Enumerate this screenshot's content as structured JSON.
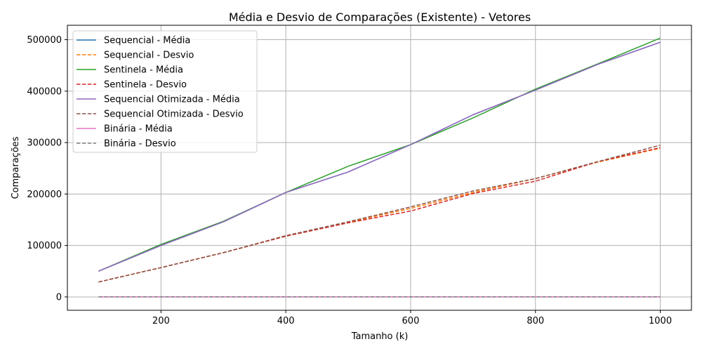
{
  "chart_data": {
    "type": "line",
    "title": "Média e Desvio de Comparações (Existente) - Vetores",
    "xlabel": "Tamanho (k)",
    "ylabel": "Comparações",
    "xlim": [
      50,
      1050
    ],
    "ylim": [
      -26000,
      528000
    ],
    "xticks": [
      200,
      400,
      600,
      800,
      1000
    ],
    "yticks": [
      0,
      100000,
      200000,
      300000,
      400000,
      500000
    ],
    "grid": true,
    "legend_position": "top-left",
    "x": [
      100,
      200,
      300,
      400,
      500,
      600,
      700,
      800,
      900,
      1000
    ],
    "series": [
      {
        "name": "Sequencial - Média",
        "color": "#1f77b4",
        "dash": "solid",
        "values": [
          50000,
          100000,
          146000,
          203000,
          243000,
          296000,
          354000,
          402000,
          452000,
          495000
        ]
      },
      {
        "name": "Sequencial - Desvio",
        "color": "#ff7f0e",
        "dash": "dashed",
        "values": [
          29000,
          57000,
          86000,
          118000,
          145000,
          172000,
          203000,
          230000,
          262000,
          289000
        ]
      },
      {
        "name": "Sentinela - Média",
        "color": "#2ca02c",
        "dash": "solid",
        "values": [
          50000,
          102000,
          147000,
          203000,
          254000,
          296000,
          348000,
          404000,
          453000,
          503000
        ]
      },
      {
        "name": "Sentinela - Desvio",
        "color": "#d62728",
        "dash": "dashed",
        "values": [
          29000,
          57000,
          86000,
          118000,
          144000,
          167000,
          201000,
          225000,
          263000,
          290000
        ]
      },
      {
        "name": "Sequencial Otimizada - Média",
        "color": "#9467bd",
        "dash": "solid",
        "values": [
          50000,
          100000,
          146000,
          203000,
          243000,
          296000,
          354000,
          402000,
          452000,
          495000
        ]
      },
      {
        "name": "Sequencial Otimizada - Desvio",
        "color": "#8c564b",
        "dash": "dashed",
        "values": [
          29000,
          57000,
          86000,
          119000,
          146000,
          175000,
          206000,
          230000,
          263000,
          295000
        ]
      },
      {
        "name": "Binária - Média",
        "color": "#e377c2",
        "dash": "solid",
        "values": [
          17,
          18,
          18,
          19,
          19,
          19,
          19,
          19,
          20,
          20
        ]
      },
      {
        "name": "Binária - Desvio",
        "color": "#7f7f7f",
        "dash": "dashed",
        "values": [
          1,
          1,
          1,
          1,
          1,
          1,
          1,
          1,
          1,
          1
        ]
      }
    ]
  }
}
